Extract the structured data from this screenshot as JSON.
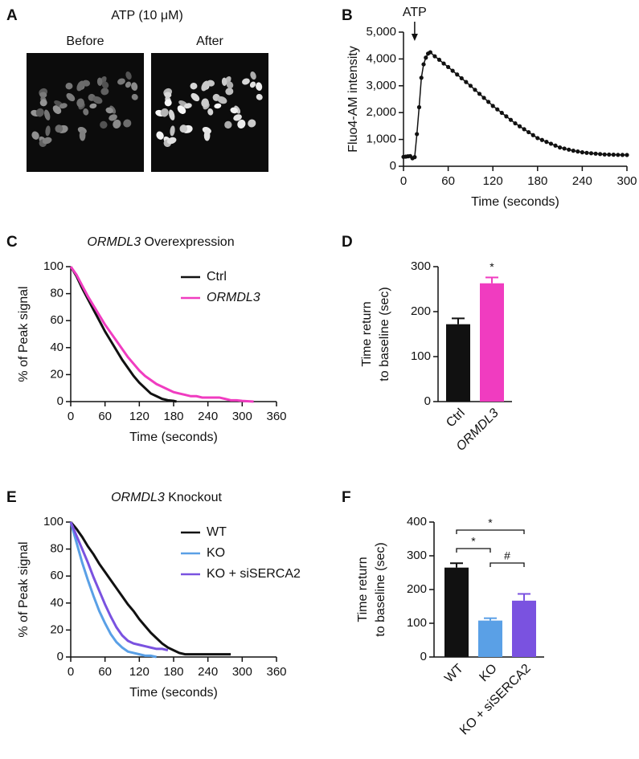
{
  "chart_data": [
    {
      "panel": "A",
      "type": "image",
      "title": "ATP (10 μM)",
      "labels": [
        "Before",
        "After"
      ]
    },
    {
      "panel": "B",
      "type": "line",
      "ylabel": "Fluo4-AM intensity",
      "xlabel": "Time (seconds)",
      "xlim": [
        0,
        300
      ],
      "xticks": [
        0,
        60,
        120,
        180,
        240,
        300
      ],
      "ylim": [
        0,
        5000
      ],
      "yticks": [
        0,
        {
          "value": 1000,
          "label": "1,000"
        },
        {
          "value": 2000,
          "label": "2,000"
        },
        {
          "value": 3000,
          "label": "3,000"
        },
        {
          "value": 4000,
          "label": "4,000"
        },
        {
          "value": 5000,
          "label": "5,000"
        }
      ],
      "annotation": {
        "text": "ATP",
        "x": 15
      },
      "marker": "circle",
      "series": [
        {
          "color": "#111111",
          "x": [
            0,
            3,
            6,
            9,
            12,
            15,
            18,
            21,
            24,
            27,
            30,
            33,
            36,
            42,
            48,
            54,
            60,
            66,
            72,
            78,
            84,
            90,
            96,
            102,
            108,
            114,
            120,
            126,
            132,
            138,
            144,
            150,
            156,
            162,
            168,
            174,
            180,
            186,
            192,
            198,
            204,
            210,
            216,
            222,
            228,
            234,
            240,
            246,
            252,
            258,
            264,
            270,
            276,
            282,
            288,
            294,
            300
          ],
          "values": [
            350,
            360,
            370,
            380,
            300,
            340,
            1200,
            2200,
            3300,
            3800,
            4050,
            4200,
            4250,
            4100,
            3970,
            3830,
            3700,
            3560,
            3420,
            3280,
            3140,
            3000,
            2850,
            2700,
            2550,
            2400,
            2250,
            2120,
            1990,
            1860,
            1730,
            1600,
            1490,
            1380,
            1270,
            1160,
            1050,
            980,
            910,
            840,
            770,
            700,
            660,
            620,
            580,
            550,
            520,
            500,
            485,
            470,
            455,
            440,
            435,
            430,
            425,
            422,
            420
          ]
        }
      ]
    },
    {
      "panel": "C",
      "type": "line",
      "title": [
        "ORMDL3",
        "Overexpression"
      ],
      "title_italic": [
        true,
        false
      ],
      "ylabel": "% of Peak signal",
      "xlabel": "Time (seconds)",
      "xlim": [
        0,
        360
      ],
      "xticks": [
        0,
        60,
        120,
        180,
        240,
        300,
        360
      ],
      "ylim": [
        0,
        100
      ],
      "yticks": [
        0,
        20,
        40,
        60,
        80,
        100
      ],
      "legend": true,
      "series": [
        {
          "name": "Ctrl",
          "color": "#111111",
          "italic": false,
          "x": [
            0,
            10,
            20,
            30,
            40,
            50,
            60,
            70,
            80,
            90,
            100,
            110,
            120,
            130,
            140,
            150,
            160,
            170,
            180,
            185
          ],
          "values": [
            100,
            93,
            84,
            76,
            68,
            60,
            52,
            45,
            38,
            31,
            25,
            19,
            14,
            10,
            6,
            4,
            2,
            1,
            0.5,
            0
          ]
        },
        {
          "name": "ORMDL3",
          "color": "#f03cc0",
          "italic": true,
          "x": [
            0,
            10,
            20,
            30,
            40,
            50,
            60,
            70,
            80,
            90,
            100,
            110,
            120,
            130,
            140,
            150,
            160,
            170,
            180,
            190,
            200,
            210,
            220,
            230,
            240,
            250,
            260,
            270,
            280,
            290,
            300,
            320
          ],
          "values": [
            100,
            94,
            86,
            78,
            71,
            64,
            57,
            51,
            45,
            39,
            33,
            28,
            23,
            19,
            16,
            13,
            11,
            9,
            7,
            6,
            5,
            4,
            4,
            3,
            3,
            3,
            3,
            2,
            1,
            1,
            0.5,
            0
          ]
        }
      ]
    },
    {
      "panel": "D",
      "type": "bar",
      "ylabel": [
        "Time return",
        "to baseline (sec)"
      ],
      "categories": [
        "Ctrl",
        "ORMDL3"
      ],
      "category_italic": [
        false,
        true
      ],
      "values": [
        172,
        263
      ],
      "errors": [
        13,
        13
      ],
      "colors": [
        "#111111",
        "#f03cc0"
      ],
      "ylim": [
        0,
        300
      ],
      "yticks": [
        0,
        100,
        200,
        300
      ],
      "annotations": [
        {
          "category": 1,
          "label": "*"
        }
      ]
    },
    {
      "panel": "E",
      "type": "line",
      "title": [
        "ORMDL3",
        "Knockout"
      ],
      "title_italic": [
        true,
        false
      ],
      "ylabel": "% of Peak signal",
      "xlabel": "Time (seconds)",
      "xlim": [
        0,
        360
      ],
      "xticks": [
        0,
        60,
        120,
        180,
        240,
        300,
        360
      ],
      "ylim": [
        0,
        100
      ],
      "yticks": [
        0,
        20,
        40,
        60,
        80,
        100
      ],
      "legend": true,
      "series": [
        {
          "name": "WT",
          "color": "#111111",
          "italic": false,
          "x": [
            0,
            10,
            20,
            30,
            40,
            50,
            60,
            70,
            80,
            90,
            100,
            110,
            120,
            130,
            140,
            150,
            160,
            170,
            180,
            190,
            200,
            220,
            240,
            260,
            280
          ],
          "values": [
            100,
            95,
            89,
            82,
            76,
            69,
            63,
            57,
            51,
            45,
            39,
            34,
            28,
            23,
            18,
            14,
            10,
            7,
            5,
            3,
            2,
            2,
            2,
            2,
            2
          ]
        },
        {
          "name": "KO",
          "color": "#5aa0e6",
          "italic": false,
          "x": [
            0,
            10,
            20,
            30,
            40,
            50,
            60,
            70,
            80,
            90,
            100,
            110,
            120,
            130,
            140,
            150
          ],
          "values": [
            100,
            85,
            70,
            57,
            45,
            34,
            25,
            17,
            11,
            7,
            4,
            3,
            2,
            1,
            1,
            0
          ]
        },
        {
          "name": "KO + siSERCA2",
          "color": "#7a52e0",
          "italic": false,
          "x": [
            0,
            10,
            20,
            30,
            40,
            50,
            60,
            70,
            80,
            90,
            100,
            110,
            120,
            130,
            140,
            150,
            160,
            170
          ],
          "values": [
            100,
            90,
            80,
            70,
            59,
            49,
            39,
            30,
            22,
            16,
            12,
            10,
            9,
            8,
            7,
            6,
            6,
            5
          ]
        }
      ]
    },
    {
      "panel": "F",
      "type": "bar",
      "ylabel": [
        "Time return",
        "to baseline (sec)"
      ],
      "categories": [
        "WT",
        "KO",
        "KO + siSERCA2"
      ],
      "category_italic": [
        false,
        false,
        false
      ],
      "values": [
        265,
        108,
        167
      ],
      "errors": [
        13,
        7,
        20
      ],
      "colors": [
        "#111111",
        "#5aa0e6",
        "#7a52e0"
      ],
      "ylim": [
        0,
        400
      ],
      "yticks": [
        0,
        100,
        200,
        300,
        400
      ],
      "comparisons": [
        {
          "pair": [
            0,
            2
          ],
          "label": "*"
        },
        {
          "pair": [
            0,
            1
          ],
          "label": "*"
        },
        {
          "pair": [
            1,
            2
          ],
          "label": "#"
        }
      ]
    }
  ]
}
